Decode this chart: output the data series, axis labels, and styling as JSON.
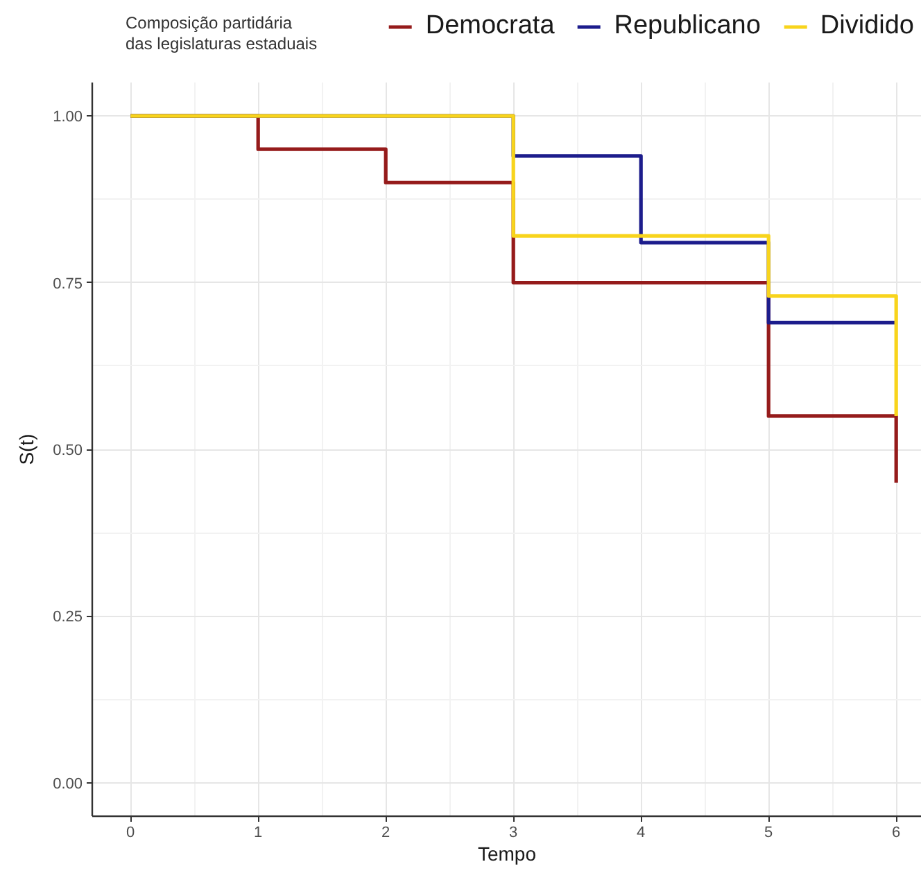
{
  "chart_data": {
    "type": "step",
    "xlabel": "Tempo",
    "ylabel": "S(t)",
    "legend_title": "Composição partidária\ndas legislaturas estaduais",
    "legend": "top",
    "grid": true,
    "line_style": "solid",
    "xlim": [
      -0.3,
      6.2
    ],
    "ylim": [
      -0.05,
      1.05
    ],
    "xticks": [
      0,
      1,
      2,
      3,
      4,
      5,
      6
    ],
    "yticks": [
      {
        "value": 0,
        "label": "0.00"
      },
      {
        "value": 0.25,
        "label": "0.25"
      },
      {
        "value": 0.5,
        "label": "0.50"
      },
      {
        "value": 0.75,
        "label": "0.75"
      },
      {
        "value": 1,
        "label": "1.00"
      }
    ],
    "series": [
      {
        "name": "Democrata",
        "color": "#951b1b",
        "x": [
          0,
          1,
          2,
          3,
          5,
          6
        ],
        "values": [
          1,
          0.95,
          0.9,
          0.75,
          0.55,
          0.45
        ]
      },
      {
        "name": "Republicano",
        "color": "#1c1c8c",
        "x": [
          0,
          3,
          4,
          5,
          6
        ],
        "values": [
          1,
          0.94,
          0.81,
          0.69,
          0.69
        ]
      },
      {
        "name": "Dividido",
        "color": "#f8d41c",
        "x": [
          0,
          3,
          5,
          6
        ],
        "values": [
          1,
          0.82,
          0.73,
          0.55
        ]
      }
    ]
  }
}
